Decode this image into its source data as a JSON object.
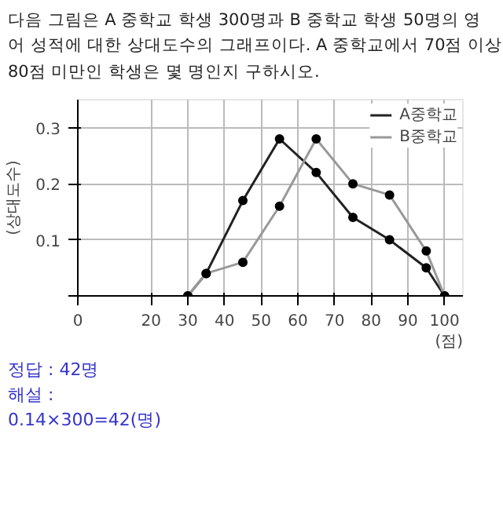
{
  "chart_data": {
    "type": "line",
    "title": "다음 그림은 A 중학교 학생 300명과 B 중학교 학생 50명의 영\n어 성적에 대한 상대도수의 그래프이다. A 중학교에서 70점 이상\n80점 미만인 학생은 몇 명인지 구하시오.",
    "ylabel": "(상대도수)",
    "x": [
      30,
      35,
      45,
      55,
      65,
      75,
      85,
      95,
      100
    ],
    "series": [
      {
        "name": "A중학교",
        "color": "#222222",
        "values": [
          0,
          0.04,
          0.17,
          0.28,
          0.22,
          0.14,
          0.1,
          0.05,
          0
        ]
      },
      {
        "name": "B중학교",
        "color": "#999999",
        "values": [
          0,
          0.04,
          0.06,
          0.16,
          0.28,
          0.2,
          0.18,
          0.08,
          0
        ]
      }
    ],
    "xlim": [
      0,
      105
    ],
    "xticks": [
      0,
      20,
      30,
      40,
      50,
      60,
      70,
      80,
      90,
      100
    ],
    "xlabel": "(점)",
    "ylim": [
      0,
      0.35
    ],
    "yticks": [
      {
        "value": 0,
        "label": null
      },
      {
        "value": 0.1,
        "label": "0.1"
      },
      {
        "value": 0.2,
        "label": "0.2"
      },
      {
        "value": 0.3,
        "label": "0.3"
      }
    ],
    "grid": true,
    "legend": "top right",
    "marker": "circle",
    "line_style": "solid",
    "annotations": [
      "정답 : 42명",
      "해설 :",
      "0.14×300=42(명)"
    ]
  }
}
